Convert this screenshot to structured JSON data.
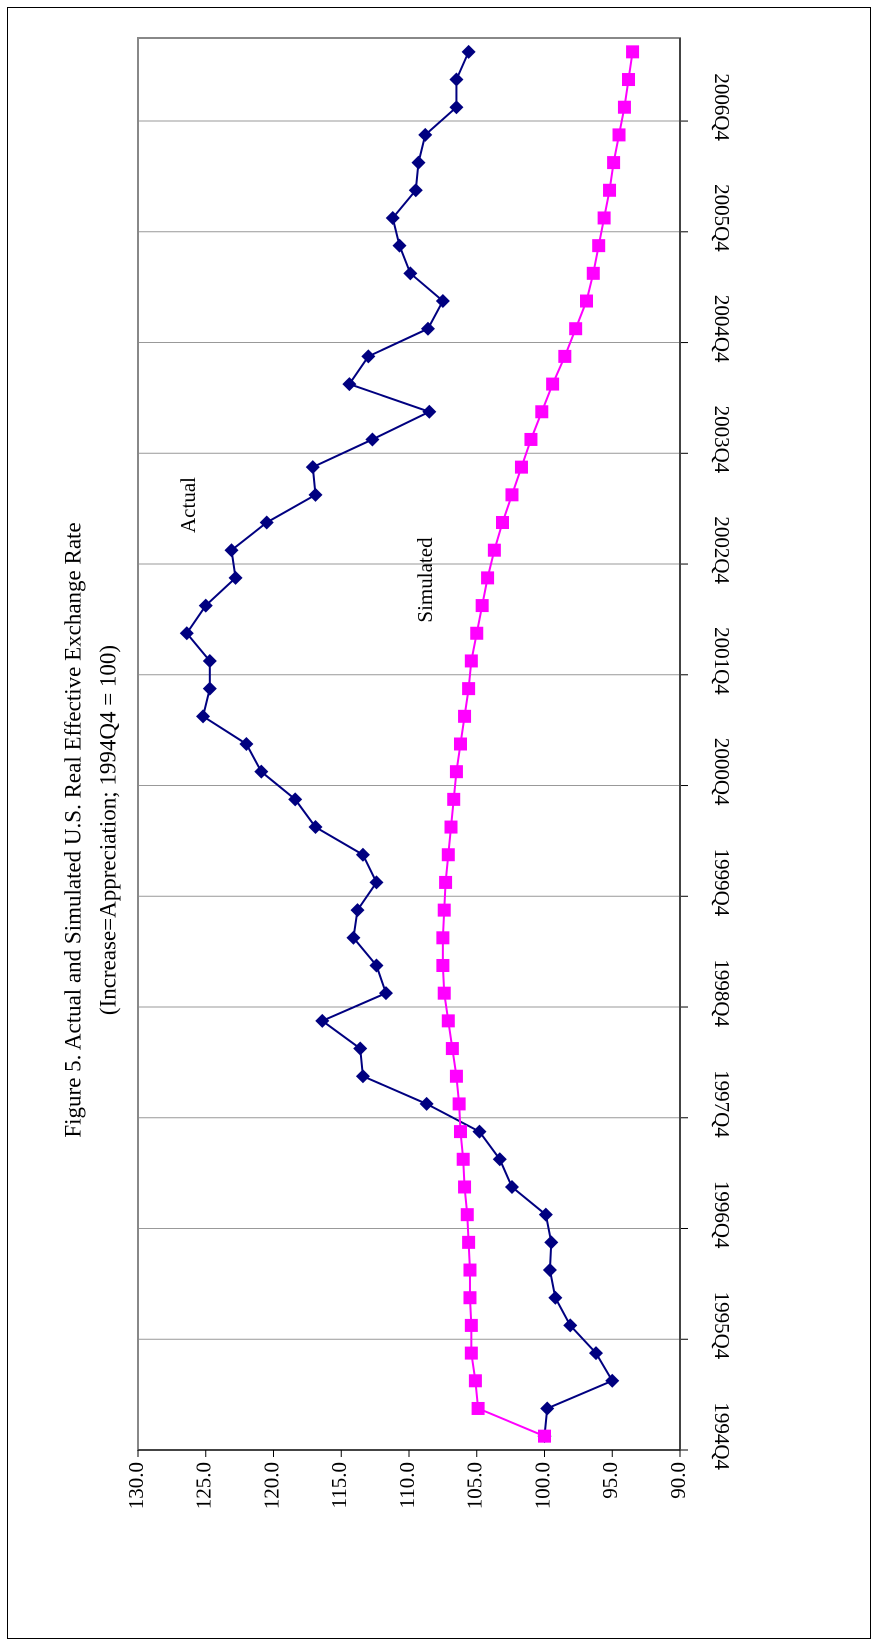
{
  "chart_data": {
    "type": "line",
    "title": "Figure 5. Actual and Simulated U.S. Real Effective Exchange Rate",
    "subtitle": "(Increase=Appreciation; 1994Q4 = 100)",
    "annotations": [
      "Actual",
      "Simulated"
    ],
    "categories": [
      "1994Q4",
      null,
      null,
      null,
      "1995Q4",
      null,
      null,
      null,
      "1996Q4",
      null,
      null,
      null,
      "1997Q4",
      null,
      null,
      null,
      "1998Q4",
      null,
      null,
      null,
      "1999Q4",
      null,
      null,
      null,
      "2000Q4",
      null,
      null,
      null,
      "2001Q4",
      null,
      null,
      null,
      "2002Q4",
      null,
      null,
      null,
      "2003Q4",
      null,
      null,
      null,
      "2004Q4",
      null,
      null,
      null,
      "2005Q4",
      null,
      null,
      null,
      "2006Q4",
      null,
      null
    ],
    "series": [
      {
        "name": "Actual",
        "color": "#000080",
        "marker": "diamond",
        "values": [
          100.0,
          99.8,
          95.0,
          96.2,
          98.1,
          99.2,
          99.6,
          99.5,
          99.9,
          102.4,
          103.3,
          104.8,
          108.7,
          113.4,
          113.6,
          116.4,
          111.7,
          112.4,
          114.1,
          113.8,
          112.4,
          113.4,
          116.9,
          118.4,
          120.9,
          122.0,
          125.2,
          124.7,
          124.7,
          126.4,
          125.0,
          122.8,
          123.1,
          120.5,
          116.9,
          117.1,
          112.7,
          108.5,
          114.4,
          113.0,
          108.6,
          107.5,
          109.9,
          110.7,
          111.2,
          109.5,
          109.3,
          108.8,
          106.5,
          106.5,
          105.6
        ]
      },
      {
        "name": "Simulated",
        "color": "#FF00FF",
        "marker": "square",
        "values": [
          100.0,
          104.9,
          105.1,
          105.4,
          105.4,
          105.5,
          105.5,
          105.6,
          105.7,
          105.9,
          106.0,
          106.2,
          106.3,
          106.5,
          106.8,
          107.1,
          107.4,
          107.5,
          107.5,
          107.4,
          107.3,
          107.1,
          106.9,
          106.7,
          106.5,
          106.2,
          105.9,
          105.6,
          105.4,
          105.0,
          104.6,
          104.2,
          103.7,
          103.1,
          102.4,
          101.7,
          101.0,
          100.2,
          99.4,
          98.5,
          97.7,
          96.9,
          96.4,
          96.0,
          95.6,
          95.2,
          94.9,
          94.5,
          94.1,
          93.8,
          93.5
        ]
      }
    ],
    "ylim": [
      130,
      90
    ],
    "yticks": [
      {
        "value": 130,
        "label": "130.0"
      },
      {
        "value": 125,
        "label": "125.0"
      },
      {
        "value": 120,
        "label": "120.0"
      },
      {
        "value": 115,
        "label": "115.0"
      },
      {
        "value": 110,
        "label": "110.0"
      },
      {
        "value": 105,
        "label": "105.0"
      },
      {
        "value": 100,
        "label": "100.0"
      },
      {
        "value": 95,
        "label": "95.0"
      },
      {
        "value": 90,
        "label": "90.0"
      }
    ]
  }
}
